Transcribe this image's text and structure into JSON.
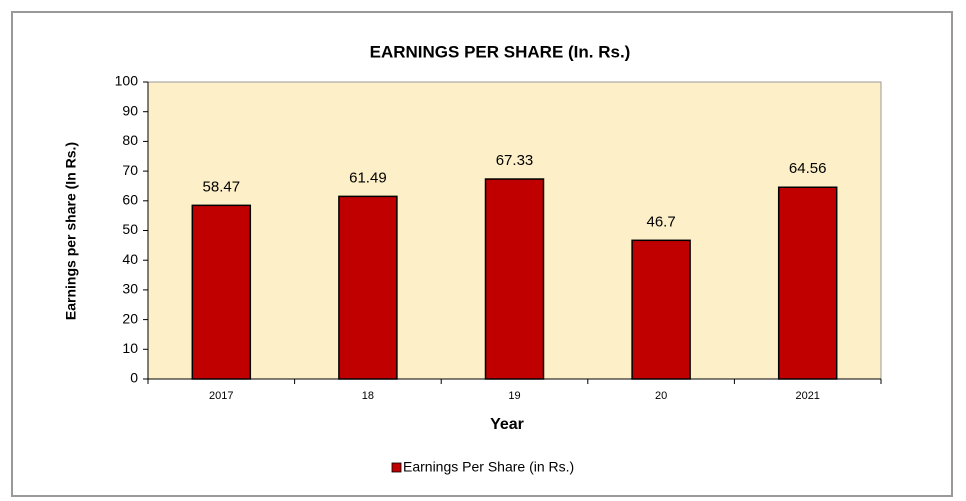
{
  "chart_data": {
    "type": "bar",
    "title": "EARNINGS PER SHARE (In. Rs.)",
    "x_label": "Year",
    "y_label": "Earnings per share  (In Rs.)",
    "categories": [
      "2017",
      "18",
      "19",
      "20",
      "2021"
    ],
    "series": [
      {
        "name": "Earnings Per Share (in Rs.)",
        "color": "#c00000",
        "values": [
          58.47,
          61.49,
          67.33,
          46.7,
          64.56
        ]
      }
    ],
    "ylim": [
      0,
      100
    ],
    "yticks": [
      0,
      10,
      20,
      30,
      40,
      50,
      60,
      70,
      80,
      90,
      100
    ],
    "grid": false,
    "legend": "bottom",
    "plot_background": "#fdf0c8"
  }
}
